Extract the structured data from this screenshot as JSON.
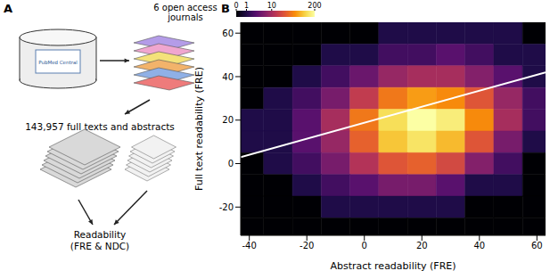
{
  "panel_a": {
    "label": "A",
    "database": "PubMed Central",
    "journals": [
      "6 open access",
      "journals"
    ],
    "corpus": "143,957 full texts and abstracts",
    "measure": [
      "Readability",
      "(FRE & NDC)"
    ]
  },
  "chart_data": {
    "type": "heatmap",
    "label": "B",
    "x_label": "Abstract readability (FRE)",
    "y_label": "Full text readability (FRE)",
    "xlim": [
      -43,
      63
    ],
    "ylim": [
      -33,
      65
    ],
    "xticks": [
      -40,
      -20,
      0,
      20,
      40,
      60
    ],
    "yticks": [
      -20,
      0,
      20,
      40,
      60
    ],
    "x": [
      -40,
      -30,
      -20,
      -10,
      0,
      10,
      20,
      30,
      40,
      50,
      60
    ],
    "y": [
      60,
      50,
      40,
      30,
      20,
      10,
      0,
      -10,
      -20,
      -30
    ],
    "cells": [
      [
        0,
        0,
        0,
        0,
        0,
        1,
        1,
        1,
        1,
        1,
        0
      ],
      [
        0,
        0,
        0,
        1,
        1,
        2,
        2,
        3,
        2,
        1,
        1
      ],
      [
        0,
        0,
        1,
        2,
        4,
        8,
        10,
        10,
        6,
        3,
        1
      ],
      [
        0,
        1,
        2,
        5,
        15,
        40,
        60,
        50,
        25,
        8,
        2
      ],
      [
        1,
        1,
        3,
        10,
        40,
        120,
        200,
        150,
        50,
        10,
        2
      ],
      [
        1,
        1,
        3,
        8,
        30,
        90,
        130,
        80,
        25,
        5,
        1
      ],
      [
        0,
        1,
        2,
        5,
        12,
        25,
        30,
        20,
        6,
        2,
        0
      ],
      [
        0,
        0,
        1,
        2,
        3,
        5,
        5,
        3,
        1,
        1,
        0
      ],
      [
        0,
        0,
        0,
        1,
        1,
        1,
        1,
        1,
        0,
        0,
        0
      ],
      [
        0,
        0,
        0,
        0,
        0,
        0,
        0,
        0,
        0,
        0,
        0
      ]
    ],
    "colorbar": {
      "range": [
        0,
        200
      ],
      "ticks": [
        0,
        1,
        10,
        200
      ]
    },
    "line": {
      "x": [
        -43,
        63
      ],
      "y": [
        3,
        42
      ],
      "color": "#ffffff"
    }
  }
}
